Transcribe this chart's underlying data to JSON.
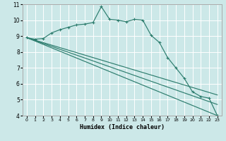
{
  "xlabel": "Humidex (Indice chaleur)",
  "bg_color": "#cce8e8",
  "grid_color": "#ffffff",
  "line_color": "#2d7d6e",
  "xlim": [
    -0.5,
    23.5
  ],
  "ylim": [
    4,
    11
  ],
  "xticks": [
    0,
    1,
    2,
    3,
    4,
    5,
    6,
    7,
    8,
    9,
    10,
    11,
    12,
    13,
    14,
    15,
    16,
    17,
    18,
    19,
    20,
    21,
    22,
    23
  ],
  "yticks": [
    4,
    5,
    6,
    7,
    8,
    9,
    10,
    11
  ],
  "series1_x": [
    0,
    1,
    2,
    3,
    4,
    5,
    6,
    7,
    8,
    9,
    10,
    11,
    12,
    13,
    14,
    15,
    16,
    17,
    18,
    19,
    20,
    21,
    22,
    23
  ],
  "series1_y": [
    8.9,
    8.8,
    8.85,
    9.2,
    9.4,
    9.55,
    9.7,
    9.75,
    9.85,
    10.85,
    10.05,
    10.0,
    9.9,
    10.05,
    10.0,
    9.05,
    8.6,
    7.65,
    7.0,
    6.35,
    5.5,
    5.2,
    5.1,
    4.0
  ],
  "series2_x": [
    0,
    23
  ],
  "series2_y": [
    8.9,
    4.0
  ],
  "series3_x": [
    0,
    23
  ],
  "series3_y": [
    8.9,
    4.7
  ],
  "series4_x": [
    0,
    23
  ],
  "series4_y": [
    8.9,
    5.3
  ]
}
